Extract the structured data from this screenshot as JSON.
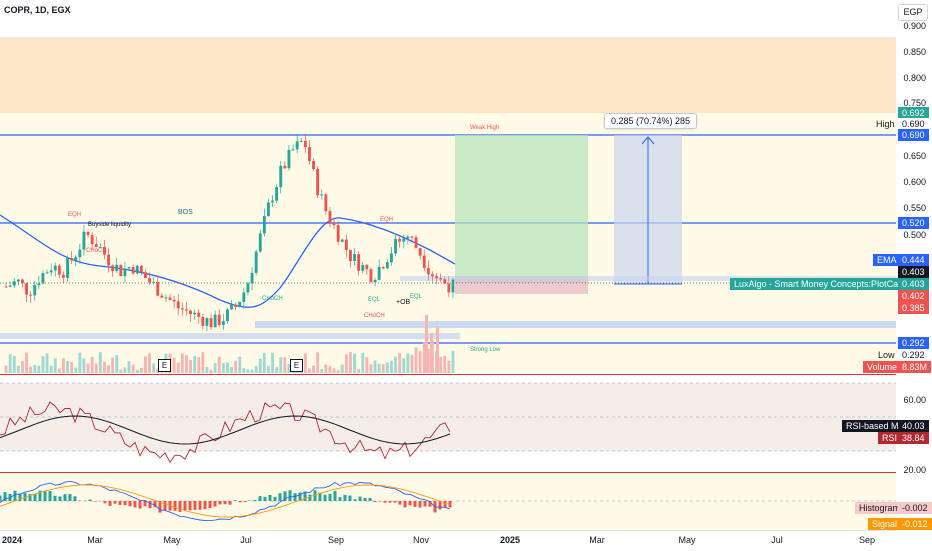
{
  "header": {
    "symbol": "COPR, 1D, EGX",
    "currency": "EGP"
  },
  "price_axis": [
    "0.900",
    "0.850",
    "0.800",
    "0.750",
    "0.650",
    "0.600",
    "0.550",
    "0.500",
    "0.450"
  ],
  "price_tags": {
    "t692": "0.692",
    "high_value": "0.690",
    "high_line": "0.690",
    "t520": "0.520",
    "ema_value": "0.444",
    "t403a": "0.403",
    "t403b": "0.403",
    "t402": "0.402",
    "t385": "0.385",
    "t292": "0.292",
    "low_value": "0.292",
    "volume_value": "8.83M"
  },
  "labels": {
    "high": "High",
    "ema": "EMA",
    "low": "Low",
    "volume": "Volume",
    "indicator": "LuxAlgo - Smart Money Concepts:PlotCandle",
    "measure": "0.285 (70.74%) 285",
    "bos": "BOS",
    "ob": "+OB",
    "buyside": "Buyside liquidity",
    "weak_high": "Weak High",
    "strong_low": "Strong Low",
    "eqh": "EQH",
    "eql": "EQL",
    "choch": "CHoCH",
    "e": "E"
  },
  "rsi": {
    "axis_top": "60.00",
    "axis_bottom": "20.00",
    "ma_label": "RSI-based MA",
    "ma_value": "40.03",
    "rsi_label": "RSI",
    "rsi_value": "38.84"
  },
  "macd": {
    "histogram_label": "Histogram",
    "histogram_value": "-0.002",
    "signal_label": "Signal",
    "signal_value": "-0.012"
  },
  "time_axis": [
    "2024",
    "Mar",
    "May",
    "Jul",
    "Sep",
    "Nov",
    "2025",
    "Mar",
    "May",
    "Jul",
    "Sep"
  ],
  "colors": {
    "up": "#26a69a",
    "down": "#ef5350",
    "ema": "#2962ff",
    "tp_zone": "#b2dfb5",
    "measure": "#2962ff",
    "rsi": "#b22833",
    "rsi_ma": "#131722"
  },
  "chart_data": {
    "type": "candlestick",
    "price_levels": {
      "high": 0.69,
      "level_520": 0.52,
      "ema": 0.444,
      "last": 0.403,
      "low": 0.292
    },
    "candles_close_approx": [
      0.4,
      0.41,
      0.39,
      0.42,
      0.44,
      0.43,
      0.46,
      0.5,
      0.48,
      0.45,
      0.43,
      0.44,
      0.42,
      0.4,
      0.38,
      0.36,
      0.35,
      0.34,
      0.33,
      0.34,
      0.36,
      0.4,
      0.48,
      0.56,
      0.62,
      0.66,
      0.68,
      0.6,
      0.54,
      0.5,
      0.46,
      0.44,
      0.42,
      0.45,
      0.48,
      0.5,
      0.47,
      0.43,
      0.41,
      0.4
    ],
    "rsi": {
      "value": 38.84,
      "ma": 40.03
    },
    "macd": {
      "histogram": -0.002,
      "signal": -0.012
    }
  }
}
